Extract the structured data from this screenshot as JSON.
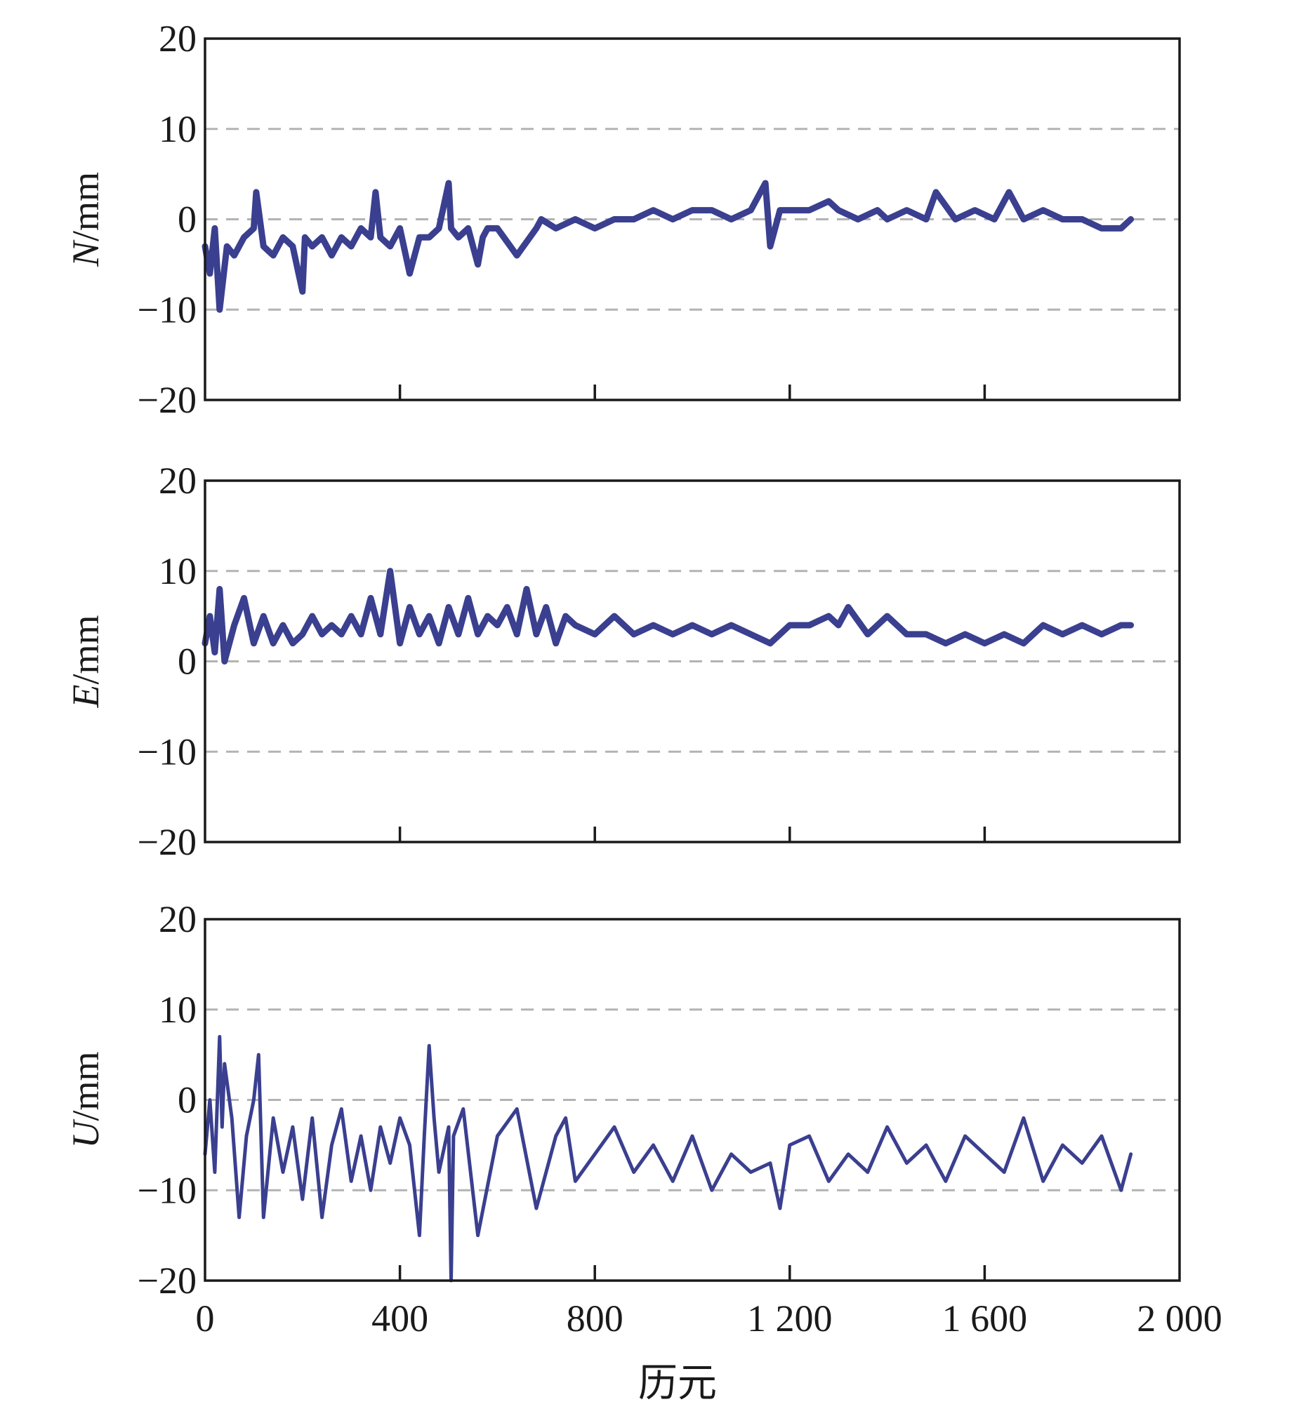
{
  "chart_data": [
    {
      "type": "line",
      "ylabel_var": "N",
      "ylabel_unit": "/mm",
      "xlim": [
        0,
        2000
      ],
      "ylim": [
        -20,
        20
      ],
      "yticks": [
        20,
        10,
        0,
        -10,
        -20
      ],
      "ytick_labels": [
        "20",
        "10",
        "0",
        "−10",
        "−20"
      ],
      "xticks": [
        0,
        400,
        800,
        1200,
        1600,
        2000
      ],
      "xtick_labels": [],
      "grid_y": [
        10,
        0,
        -10
      ],
      "color": "#3a3f8f",
      "series": [
        {
          "x": [
            0,
            10,
            20,
            30,
            45,
            60,
            80,
            100,
            105,
            120,
            140,
            160,
            180,
            200,
            205,
            220,
            240,
            260,
            280,
            300,
            320,
            340,
            350,
            360,
            380,
            400,
            420,
            440,
            460,
            480,
            500,
            505,
            520,
            540,
            560,
            570,
            580,
            600,
            640,
            680,
            690,
            720,
            760,
            800,
            840,
            880,
            920,
            960,
            1000,
            1040,
            1080,
            1120,
            1150,
            1160,
            1180,
            1200,
            1240,
            1280,
            1300,
            1340,
            1380,
            1400,
            1440,
            1480,
            1500,
            1540,
            1580,
            1620,
            1650,
            1680,
            1720,
            1760,
            1800,
            1840,
            1880,
            1900
          ],
          "y": [
            -3,
            -6,
            -1,
            -10,
            -3,
            -4,
            -2,
            -1,
            3,
            -3,
            -4,
            -2,
            -3,
            -8,
            -2,
            -3,
            -2,
            -4,
            -2,
            -3,
            -1,
            -2,
            3,
            -2,
            -3,
            -1,
            -6,
            -2,
            -2,
            -1,
            4,
            -1,
            -2,
            -1,
            -5,
            -2,
            -1,
            -1,
            -4,
            -1,
            0,
            -1,
            0,
            -1,
            0,
            0,
            1,
            0,
            1,
            1,
            0,
            1,
            4,
            -3,
            1,
            1,
            1,
            2,
            1,
            0,
            1,
            0,
            1,
            0,
            3,
            0,
            1,
            0,
            3,
            0,
            1,
            0,
            0,
            -1,
            -1,
            0
          ]
        }
      ]
    },
    {
      "type": "line",
      "ylabel_var": "E",
      "ylabel_unit": "/mm",
      "xlim": [
        0,
        2000
      ],
      "ylim": [
        -20,
        20
      ],
      "yticks": [
        20,
        10,
        0,
        -10,
        -20
      ],
      "ytick_labels": [
        "20",
        "10",
        "0",
        "−10",
        "−20"
      ],
      "xticks": [
        0,
        400,
        800,
        1200,
        1600,
        2000
      ],
      "xtick_labels": [],
      "grid_y": [
        10,
        0,
        -10
      ],
      "color": "#3a3f8f",
      "series": [
        {
          "x": [
            0,
            10,
            20,
            30,
            40,
            60,
            80,
            100,
            120,
            140,
            160,
            180,
            200,
            220,
            240,
            260,
            280,
            300,
            320,
            340,
            360,
            380,
            400,
            420,
            440,
            460,
            480,
            500,
            520,
            540,
            560,
            580,
            600,
            620,
            640,
            660,
            680,
            700,
            720,
            740,
            760,
            800,
            840,
            880,
            920,
            960,
            1000,
            1040,
            1080,
            1120,
            1160,
            1200,
            1240,
            1280,
            1300,
            1320,
            1360,
            1400,
            1440,
            1480,
            1520,
            1560,
            1600,
            1640,
            1680,
            1720,
            1760,
            1800,
            1840,
            1880,
            1900
          ],
          "y": [
            2,
            5,
            1,
            8,
            0,
            4,
            7,
            2,
            5,
            2,
            4,
            2,
            3,
            5,
            3,
            4,
            3,
            5,
            3,
            7,
            3,
            10,
            2,
            6,
            3,
            5,
            2,
            6,
            3,
            7,
            3,
            5,
            4,
            6,
            3,
            8,
            3,
            6,
            2,
            5,
            4,
            3,
            5,
            3,
            4,
            3,
            4,
            3,
            4,
            3,
            2,
            4,
            4,
            5,
            4,
            6,
            3,
            5,
            3,
            3,
            2,
            3,
            2,
            3,
            2,
            4,
            3,
            4,
            3,
            4,
            4
          ]
        }
      ]
    },
    {
      "type": "line",
      "ylabel_var": "U",
      "ylabel_unit": "/mm",
      "xlim": [
        0,
        2000
      ],
      "ylim": [
        -20,
        20
      ],
      "yticks": [
        20,
        10,
        0,
        -10,
        -20
      ],
      "ytick_labels": [
        "20",
        "10",
        "0",
        "−10",
        "−20"
      ],
      "xticks": [
        0,
        400,
        800,
        1200,
        1600,
        2000
      ],
      "xtick_labels": [
        "0",
        "400",
        "800",
        "1 200",
        "1 600",
        "2 000"
      ],
      "grid_y": [
        10,
        0,
        -10
      ],
      "color": "#3a3f8f",
      "series": [
        {
          "x": [
            0,
            10,
            20,
            30,
            35,
            40,
            55,
            70,
            85,
            100,
            110,
            120,
            140,
            160,
            180,
            200,
            220,
            240,
            260,
            280,
            300,
            320,
            340,
            360,
            380,
            400,
            420,
            440,
            450,
            460,
            470,
            480,
            500,
            505,
            510,
            530,
            560,
            600,
            640,
            680,
            720,
            740,
            760,
            800,
            840,
            880,
            920,
            960,
            1000,
            1040,
            1080,
            1120,
            1160,
            1180,
            1200,
            1240,
            1280,
            1320,
            1360,
            1400,
            1440,
            1480,
            1520,
            1560,
            1600,
            1640,
            1680,
            1720,
            1760,
            1800,
            1840,
            1880,
            1900
          ],
          "y": [
            -6,
            0,
            -8,
            7,
            -3,
            4,
            -2,
            -13,
            -4,
            0,
            5,
            -13,
            -2,
            -8,
            -3,
            -11,
            -2,
            -13,
            -5,
            -1,
            -9,
            -4,
            -10,
            -3,
            -7,
            -2,
            -5,
            -15,
            -4,
            6,
            -2,
            -8,
            -3,
            -20,
            -4,
            -1,
            -15,
            -4,
            -1,
            -12,
            -4,
            -2,
            -9,
            -6,
            -3,
            -8,
            -5,
            -9,
            -4,
            -10,
            -6,
            -8,
            -7,
            -12,
            -5,
            -4,
            -9,
            -6,
            -8,
            -3,
            -7,
            -5,
            -9,
            -4,
            -6,
            -8,
            -2,
            -9,
            -5,
            -7,
            -4,
            -10,
            -6
          ]
        }
      ]
    }
  ],
  "figure": {
    "xlabel": "历元"
  }
}
